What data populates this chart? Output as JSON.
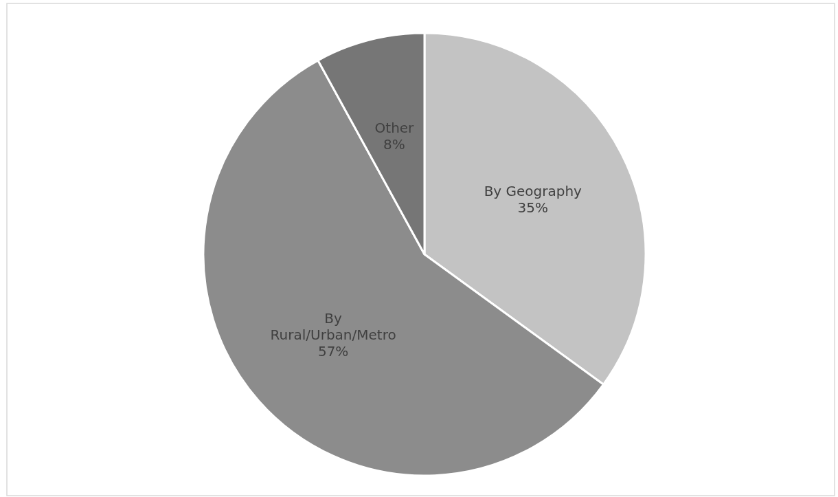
{
  "chart_data": {
    "type": "pie",
    "categories": [
      "By Geography",
      "By Rural/Urban/Metro",
      "Other"
    ],
    "values": [
      35,
      57,
      8
    ],
    "value_labels": [
      "35%",
      "57%",
      "8%"
    ],
    "colors": [
      "#c3c3c3",
      "#8c8c8c",
      "#767676"
    ]
  }
}
